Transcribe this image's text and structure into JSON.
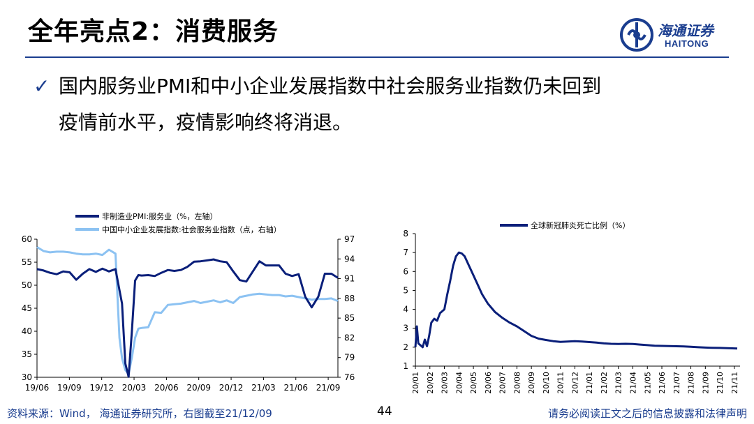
{
  "header": {
    "title": "全年亮点2：消费服务",
    "logo": {
      "cn": "海通证券",
      "en": "HAITONG",
      "icon": "haitong-logo-icon",
      "color": "#1a3d8f"
    }
  },
  "bullet": {
    "icon": "check-icon",
    "line1": "国内服务业PMI和中小企业发展指数中社会服务业指数仍未回到",
    "line2": "疫情前水平，疫情影响终将消退。"
  },
  "chart_data": [
    {
      "type": "line",
      "series": [
        {
          "name": "非制造业PMI:服务业（%，左轴）",
          "axis": "left",
          "color": "#0a1f7a",
          "points": [
            [
              0,
              53.5
            ],
            [
              1,
              53.2
            ],
            [
              2,
              52.7
            ],
            [
              3,
              52.4
            ],
            [
              4,
              53.0
            ],
            [
              5,
              52.8
            ],
            [
              6,
              51.2
            ],
            [
              7,
              52.5
            ],
            [
              8,
              53.5
            ],
            [
              9,
              52.9
            ],
            [
              10,
              53.6
            ],
            [
              11,
              53.0
            ],
            [
              12,
              53.5
            ],
            [
              13,
              46
            ],
            [
              13.5,
              33
            ],
            [
              14,
              30.1
            ],
            [
              14.5,
              40
            ],
            [
              15,
              51.0
            ],
            [
              15.5,
              52.2
            ],
            [
              16,
              52.1
            ],
            [
              17,
              52.2
            ],
            [
              18,
              52.0
            ],
            [
              19,
              52.7
            ],
            [
              20,
              53.3
            ],
            [
              21,
              53.1
            ],
            [
              22,
              53.3
            ],
            [
              23,
              54.0
            ],
            [
              24,
              55.1
            ],
            [
              25,
              55.2
            ],
            [
              26,
              55.4
            ],
            [
              27,
              55.6
            ],
            [
              28,
              55.2
            ],
            [
              29,
              55.0
            ],
            [
              30,
              53.0
            ],
            [
              31,
              51.1
            ],
            [
              32,
              50.8
            ],
            [
              33,
              53.0
            ],
            [
              34,
              55.2
            ],
            [
              35,
              54.3
            ],
            [
              36,
              54.3
            ],
            [
              37,
              54.3
            ],
            [
              38,
              52.5
            ],
            [
              39,
              52.0
            ],
            [
              40,
              52.4
            ],
            [
              41,
              47.5
            ],
            [
              42,
              45.2
            ],
            [
              43,
              47.5
            ],
            [
              44,
              52.5
            ],
            [
              45,
              52.5
            ],
            [
              46,
              51.6
            ]
          ]
        },
        {
          "name": "中国中小企业发展指数:社会服务业指数（点，右轴）",
          "axis": "right",
          "color": "#8cc2f2",
          "points": [
            [
              0,
              95.8
            ],
            [
              1,
              95.2
            ],
            [
              2,
              95.0
            ],
            [
              3,
              95.1
            ],
            [
              4,
              95.1
            ],
            [
              5,
              95.0
            ],
            [
              6,
              94.8
            ],
            [
              7,
              94.7
            ],
            [
              8,
              94.7
            ],
            [
              9,
              94.8
            ],
            [
              10,
              94.6
            ],
            [
              11,
              95.4
            ],
            [
              12,
              94.8
            ],
            [
              12.6,
              82
            ],
            [
              13,
              78.9
            ],
            [
              13.5,
              77.1
            ],
            [
              14,
              76.5
            ],
            [
              14.5,
              79
            ],
            [
              15,
              82
            ],
            [
              15.5,
              83.4
            ],
            [
              16,
              83.5
            ],
            [
              17,
              83.6
            ],
            [
              18,
              85.9
            ],
            [
              19,
              85.8
            ],
            [
              20,
              87.0
            ],
            [
              21,
              87.1
            ],
            [
              22,
              87.2
            ],
            [
              23,
              87.4
            ],
            [
              24,
              87.6
            ],
            [
              25,
              87.3
            ],
            [
              26,
              87.5
            ],
            [
              27,
              87.7
            ],
            [
              28,
              87.4
            ],
            [
              29,
              87.7
            ],
            [
              30,
              87.3
            ],
            [
              31,
              88.2
            ],
            [
              32,
              88.4
            ],
            [
              33,
              88.6
            ],
            [
              34,
              88.7
            ],
            [
              35,
              88.6
            ],
            [
              36,
              88.5
            ],
            [
              37,
              88.5
            ],
            [
              38,
              88.3
            ],
            [
              39,
              88.4
            ],
            [
              40,
              88.2
            ],
            [
              41,
              88.0
            ],
            [
              42,
              87.8
            ],
            [
              43,
              87.9
            ],
            [
              44,
              87.9
            ],
            [
              45,
              88.0
            ],
            [
              46,
              87.6
            ]
          ]
        }
      ],
      "x": {
        "min": 0,
        "max": 46,
        "tick_labels": [
          "19/06",
          "19/09",
          "19/12",
          "20/03",
          "20/06",
          "20/09",
          "20/12",
          "21/03",
          "21/06",
          "21/09"
        ],
        "tick_positions": [
          0,
          3,
          6,
          9,
          12,
          15,
          18,
          21,
          24,
          27
        ]
      },
      "y_left": {
        "min": 30,
        "max": 60,
        "ticks": [
          30,
          35,
          40,
          45,
          50,
          55,
          60
        ]
      },
      "y_right": {
        "min": 76,
        "max": 97,
        "ticks": [
          76,
          79,
          82,
          85,
          88,
          91,
          94,
          97
        ]
      },
      "legend": "top-left",
      "grid": false
    },
    {
      "type": "line",
      "series": [
        {
          "name": "全球新冠肺炎死亡比例（%）",
          "color": "#0a1f7a",
          "points": [
            [
              0,
              2.0
            ],
            [
              0.1,
              3.1
            ],
            [
              0.2,
              2.2
            ],
            [
              0.35,
              2.1
            ],
            [
              0.5,
              2.0
            ],
            [
              0.65,
              2.4
            ],
            [
              0.8,
              2.05
            ],
            [
              0.95,
              2.6
            ],
            [
              1.1,
              3.3
            ],
            [
              1.3,
              3.5
            ],
            [
              1.5,
              3.4
            ],
            [
              1.7,
              3.8
            ],
            [
              2.0,
              4.0
            ],
            [
              2.2,
              4.8
            ],
            [
              2.4,
              5.5
            ],
            [
              2.6,
              6.3
            ],
            [
              2.8,
              6.8
            ],
            [
              3.0,
              7.0
            ],
            [
              3.2,
              6.95
            ],
            [
              3.4,
              6.8
            ],
            [
              3.7,
              6.3
            ],
            [
              4.0,
              5.8
            ],
            [
              4.3,
              5.3
            ],
            [
              4.6,
              4.8
            ],
            [
              5.0,
              4.3
            ],
            [
              5.5,
              3.85
            ],
            [
              6.0,
              3.55
            ],
            [
              6.5,
              3.3
            ],
            [
              7.0,
              3.1
            ],
            [
              7.5,
              2.85
            ],
            [
              8.0,
              2.6
            ],
            [
              8.5,
              2.45
            ],
            [
              9.0,
              2.38
            ],
            [
              9.5,
              2.32
            ],
            [
              10.0,
              2.28
            ],
            [
              10.5,
              2.3
            ],
            [
              11.0,
              2.32
            ],
            [
              11.5,
              2.3
            ],
            [
              12.0,
              2.27
            ],
            [
              12.5,
              2.24
            ],
            [
              13.0,
              2.2
            ],
            [
              13.5,
              2.18
            ],
            [
              14.0,
              2.17
            ],
            [
              14.5,
              2.18
            ],
            [
              15.0,
              2.17
            ],
            [
              15.5,
              2.14
            ],
            [
              16.0,
              2.11
            ],
            [
              16.5,
              2.08
            ],
            [
              17.0,
              2.07
            ],
            [
              17.5,
              2.06
            ],
            [
              18.0,
              2.05
            ],
            [
              18.5,
              2.04
            ],
            [
              19.0,
              2.02
            ],
            [
              19.5,
              2.0
            ],
            [
              20.0,
              1.98
            ],
            [
              20.5,
              1.97
            ],
            [
              21.0,
              1.96
            ],
            [
              21.5,
              1.95
            ],
            [
              22.2,
              1.93
            ]
          ]
        }
      ],
      "x": {
        "min": 0,
        "max": 22.2,
        "tick_labels": [
          "20/01",
          "20/02",
          "20/03",
          "20/04",
          "20/05",
          "20/06",
          "20/07",
          "20/08",
          "20/09",
          "20/10",
          "20/11",
          "20/12",
          "21/01",
          "21/02",
          "21/03",
          "21/04",
          "21/05",
          "21/06",
          "21/07",
          "21/08",
          "21/09",
          "21/10",
          "21/11"
        ],
        "tick_positions": [
          0,
          1,
          2,
          3,
          4,
          5,
          6,
          7,
          8,
          9,
          10,
          11,
          12,
          13,
          14,
          15,
          16,
          17,
          18,
          19,
          20,
          21,
          22
        ]
      },
      "y": {
        "min": 1,
        "max": 8,
        "ticks": [
          1,
          2,
          3,
          4,
          5,
          6,
          7,
          8
        ]
      },
      "legend": "top-right",
      "grid": false
    }
  ],
  "footer": {
    "source": "资料来源：Wind， 海通证券研究所，右图截至21/12/09",
    "page": "44",
    "disclaimer": "请务必阅读正文之后的信息披露和法律声明"
  }
}
